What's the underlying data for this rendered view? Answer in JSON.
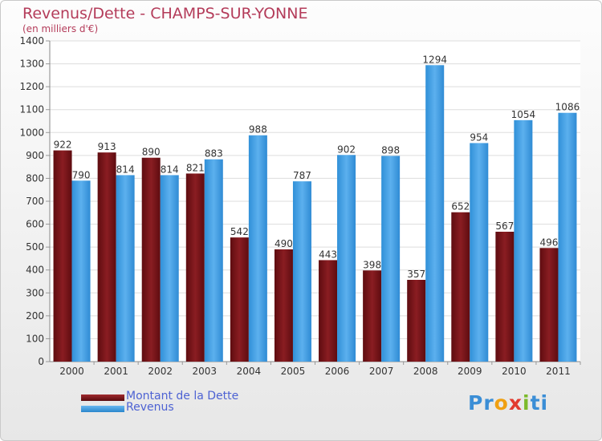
{
  "chart_data": {
    "type": "bar",
    "title": "Revenus/Dette - CHAMPS-SUR-YONNE",
    "subtitle": "(en milliers d'€)",
    "categories": [
      "2000",
      "2001",
      "2002",
      "2003",
      "2004",
      "2005",
      "2006",
      "2007",
      "2008",
      "2009",
      "2010",
      "2011"
    ],
    "series": [
      {
        "name": "Montant de la Dette",
        "color": "#7a1418",
        "values": [
          922,
          913,
          890,
          821,
          542,
          490,
          443,
          398,
          357,
          652,
          567,
          496
        ]
      },
      {
        "name": "Revenus",
        "color": "#3d9ee3",
        "values": [
          790,
          814,
          814,
          883,
          988,
          787,
          902,
          898,
          1294,
          954,
          1054,
          1086
        ]
      }
    ],
    "ylim": [
      0,
      1400
    ],
    "yticks": [
      0,
      100,
      200,
      300,
      400,
      500,
      600,
      700,
      800,
      900,
      1000,
      1100,
      1200,
      1300,
      1400
    ],
    "grid": true,
    "legend": "bottom-left"
  },
  "logo": {
    "letters": [
      {
        "ch": "P",
        "color": "#3b8ed6"
      },
      {
        "ch": "r",
        "color": "#3b8ed6"
      },
      {
        "ch": "o",
        "color": "#f0a012"
      },
      {
        "ch": "x",
        "color": "#e23a2e"
      },
      {
        "ch": "i",
        "color": "#7cba2a"
      },
      {
        "ch": "t",
        "color": "#3b8ed6"
      },
      {
        "ch": "i",
        "color": "#3b8ed6"
      }
    ]
  }
}
